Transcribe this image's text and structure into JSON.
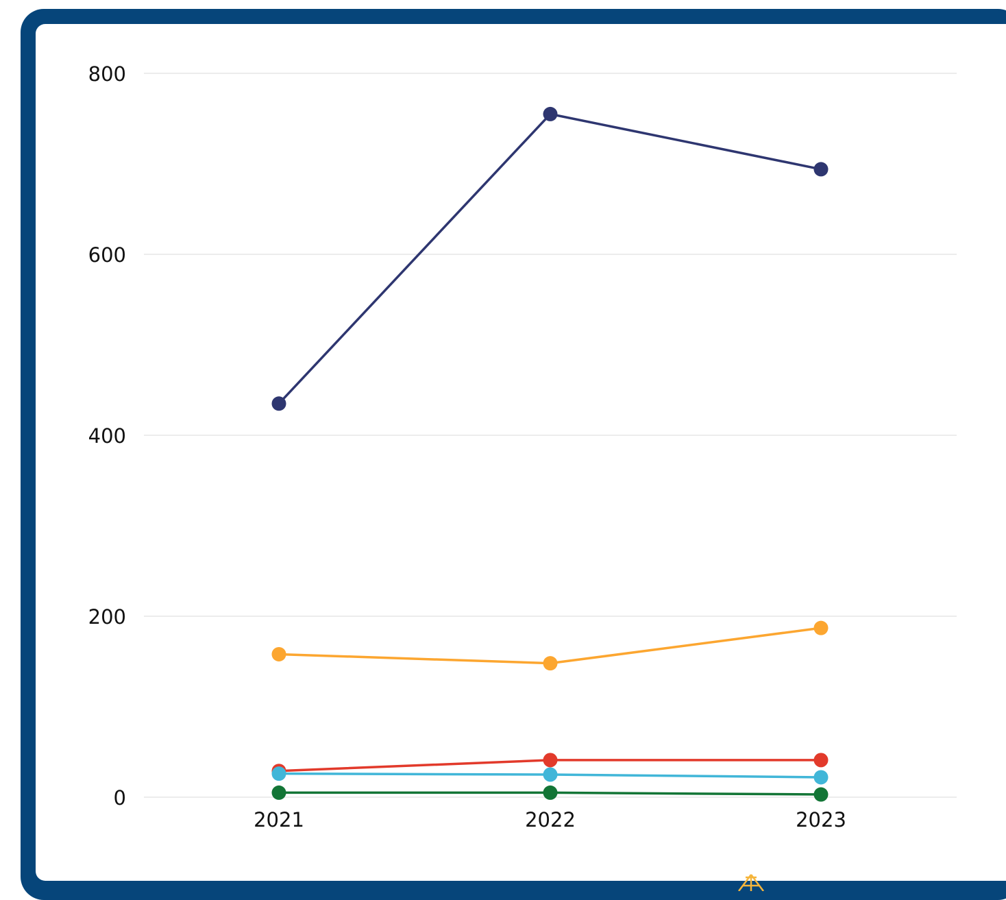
{
  "chart_data": {
    "type": "line",
    "title": "",
    "xlabel": "",
    "ylabel": "",
    "categories": [
      "2021",
      "2022",
      "2023"
    ],
    "ylim": [
      0,
      800
    ],
    "yticks": [
      0,
      200,
      400,
      600,
      800
    ],
    "grid": true,
    "legend": "none",
    "series": [
      {
        "color": "#2e3670",
        "values": [
          435,
          755,
          694
        ]
      },
      {
        "color": "#fca630",
        "values": [
          158,
          148,
          187
        ]
      },
      {
        "color": "#e23a2b",
        "values": [
          29,
          41,
          41
        ]
      },
      {
        "color": "#41b6d8",
        "values": [
          26,
          25,
          22
        ]
      },
      {
        "color": "#137536",
        "values": [
          5,
          5,
          3
        ]
      }
    ]
  },
  "frame": {
    "border_color": "#06457a",
    "accent_icon": "rocket-icon",
    "accent_color": "#f5b53c"
  }
}
